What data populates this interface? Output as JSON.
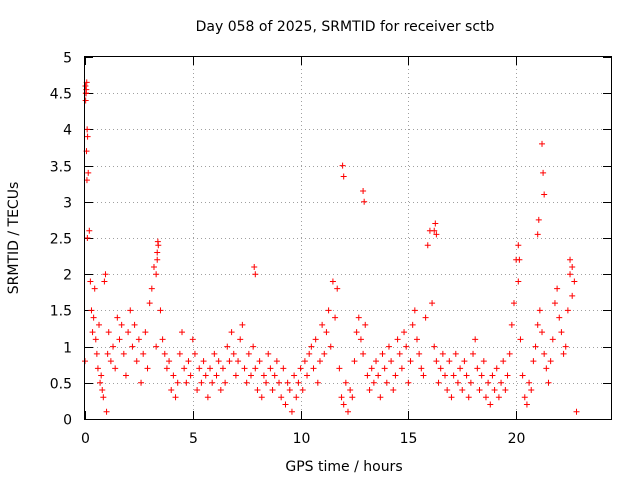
{
  "chart_data": {
    "type": "scatter",
    "title": "Day 058 of 2025, SRMTID for receiver sctb",
    "xlabel": "GPS time / hours",
    "ylabel": "SRMTID / TECUs",
    "xlim": [
      0,
      24.4
    ],
    "ylim": [
      0,
      5
    ],
    "x_ticks": [
      0,
      5,
      10,
      15,
      20
    ],
    "x_tick_labels": [
      "0",
      "5",
      "10",
      "15",
      "20"
    ],
    "y_ticks": [
      0,
      0.5,
      1,
      1.5,
      2,
      2.5,
      3,
      3.5,
      4,
      4.5,
      5
    ],
    "y_tick_labels": [
      "0",
      "0.5",
      "1",
      "1.5",
      "2",
      "2.5",
      "3",
      "3.5",
      "4",
      "4.5",
      "5"
    ],
    "grid": true,
    "marker": "+",
    "marker_color": "#ff0000",
    "series": [
      {
        "name": "sctb",
        "x": [
          0.0,
          0.02,
          0.05,
          0.08,
          0.1,
          0.12,
          0.15,
          0.2,
          0.25,
          0.3,
          0.35,
          0.4,
          0.45,
          0.5,
          0.55,
          0.6,
          0.65,
          0.7,
          0.75,
          0.8,
          0.85,
          0.9,
          0.95,
          1.0,
          1.05,
          1.1,
          1.2,
          1.3,
          1.4,
          1.5,
          1.6,
          1.7,
          1.8,
          1.9,
          2.0,
          2.1,
          2.2,
          2.3,
          2.4,
          2.5,
          2.6,
          2.7,
          2.8,
          2.9,
          3.0,
          3.1,
          3.2,
          3.3,
          3.35,
          3.4,
          3.5,
          3.6,
          3.7,
          3.8,
          3.9,
          4.0,
          4.1,
          4.2,
          4.3,
          4.4,
          4.5,
          4.6,
          4.7,
          4.8,
          4.9,
          5.0,
          5.1,
          5.2,
          5.3,
          5.4,
          5.5,
          5.6,
          5.7,
          5.8,
          5.9,
          6.0,
          6.1,
          6.2,
          6.3,
          6.4,
          6.5,
          6.6,
          6.7,
          6.8,
          6.9,
          7.0,
          7.1,
          7.2,
          7.3,
          7.4,
          7.5,
          7.6,
          7.7,
          7.8,
          7.9,
          8.0,
          8.1,
          8.2,
          8.3,
          8.4,
          8.5,
          8.6,
          8.7,
          8.8,
          8.9,
          9.0,
          9.1,
          9.2,
          9.3,
          9.4,
          9.5,
          9.6,
          9.7,
          9.8,
          9.9,
          10.0,
          10.1,
          10.2,
          10.3,
          10.4,
          10.5,
          10.6,
          10.7,
          10.8,
          10.9,
          11.0,
          11.1,
          11.2,
          11.3,
          11.4,
          11.5,
          11.6,
          11.7,
          11.8,
          11.9,
          12.0,
          12.1,
          12.2,
          12.3,
          12.4,
          12.5,
          12.6,
          12.7,
          12.8,
          12.9,
          13.0,
          13.1,
          13.2,
          13.3,
          13.4,
          13.5,
          13.6,
          13.7,
          13.8,
          13.9,
          14.0,
          14.1,
          14.2,
          14.3,
          14.4,
          14.5,
          14.6,
          14.7,
          14.8,
          14.9,
          15.0,
          15.1,
          15.2,
          15.3,
          15.4,
          15.5,
          15.6,
          15.7,
          15.8,
          15.9,
          16.0,
          16.1,
          16.2,
          16.3,
          16.4,
          16.5,
          16.6,
          16.7,
          16.8,
          16.9,
          17.0,
          17.1,
          17.2,
          17.3,
          17.4,
          17.5,
          17.6,
          17.7,
          17.8,
          17.9,
          18.0,
          18.1,
          18.2,
          18.3,
          18.4,
          18.5,
          18.6,
          18.7,
          18.8,
          18.9,
          19.0,
          19.1,
          19.2,
          19.3,
          19.4,
          19.5,
          19.6,
          19.7,
          19.8,
          19.9,
          20.0,
          20.1,
          20.2,
          20.3,
          20.4,
          20.5,
          20.6,
          20.7,
          20.8,
          20.9,
          21.0,
          21.1,
          21.2,
          21.3,
          21.4,
          21.5,
          21.6,
          21.7,
          21.8,
          21.9,
          22.0,
          22.1,
          22.2,
          22.3,
          22.4,
          22.5,
          22.6,
          22.7,
          22.8,
          0.03,
          0.04,
          0.06,
          0.07,
          0.09,
          0.11,
          3.35,
          3.38,
          3.3,
          7.85,
          7.9,
          11.95,
          12.0,
          12.9,
          12.95,
          16.2,
          16.25,
          16.3,
          20.1,
          20.15,
          21.0,
          21.05,
          21.2,
          21.25,
          21.3,
          22.5,
          22.6
        ],
        "y": [
          0.8,
          4.6,
          4.5,
          4.65,
          4.0,
          3.9,
          3.4,
          2.6,
          1.9,
          1.5,
          1.2,
          1.4,
          1.8,
          1.1,
          0.9,
          0.7,
          1.3,
          0.5,
          0.6,
          0.4,
          0.3,
          1.9,
          2.0,
          0.1,
          0.9,
          1.2,
          0.8,
          1.0,
          0.7,
          1.4,
          1.1,
          1.3,
          0.9,
          0.6,
          1.2,
          1.5,
          1.0,
          1.3,
          0.8,
          1.1,
          0.5,
          0.9,
          1.2,
          0.7,
          1.6,
          1.8,
          2.1,
          1.0,
          2.2,
          2.4,
          1.5,
          1.1,
          0.9,
          0.7,
          0.8,
          0.4,
          0.6,
          0.3,
          0.5,
          0.9,
          1.2,
          0.7,
          0.5,
          0.8,
          0.6,
          1.1,
          0.9,
          0.4,
          0.7,
          0.5,
          0.8,
          0.6,
          0.3,
          0.7,
          0.5,
          0.9,
          0.6,
          0.8,
          0.4,
          0.7,
          0.5,
          1.0,
          0.8,
          1.2,
          0.9,
          0.6,
          0.8,
          1.1,
          1.3,
          0.7,
          0.5,
          0.9,
          0.6,
          1.0,
          0.7,
          0.4,
          0.8,
          0.3,
          0.6,
          0.5,
          0.9,
          0.7,
          0.4,
          0.6,
          0.8,
          0.5,
          0.3,
          0.7,
          0.2,
          0.5,
          0.4,
          0.1,
          0.6,
          0.3,
          0.5,
          0.7,
          0.4,
          0.8,
          0.6,
          0.9,
          1.0,
          0.7,
          1.1,
          0.5,
          0.8,
          1.3,
          0.9,
          1.2,
          1.5,
          1.0,
          1.9,
          1.4,
          1.8,
          0.7,
          0.3,
          0.2,
          0.5,
          0.1,
          0.4,
          0.3,
          0.8,
          1.2,
          1.4,
          1.1,
          0.9,
          1.3,
          0.6,
          0.4,
          0.7,
          0.5,
          0.8,
          0.6,
          0.3,
          0.9,
          0.7,
          0.5,
          1.0,
          0.8,
          0.4,
          0.6,
          1.1,
          0.9,
          0.7,
          1.2,
          1.0,
          0.5,
          0.8,
          1.3,
          1.5,
          1.1,
          0.9,
          0.7,
          0.6,
          1.4,
          2.4,
          2.6,
          1.6,
          1.0,
          0.8,
          0.5,
          0.7,
          0.9,
          0.6,
          0.4,
          0.8,
          0.3,
          0.6,
          0.9,
          0.5,
          0.7,
          0.4,
          0.8,
          0.6,
          0.3,
          0.5,
          0.9,
          1.1,
          0.7,
          0.4,
          0.6,
          0.8,
          0.3,
          0.5,
          0.2,
          0.6,
          0.4,
          0.7,
          0.3,
          0.5,
          0.8,
          0.4,
          0.6,
          0.9,
          1.3,
          1.6,
          2.2,
          1.9,
          1.1,
          0.6,
          0.3,
          0.2,
          0.5,
          0.4,
          0.8,
          1.0,
          1.3,
          1.5,
          1.2,
          0.9,
          0.7,
          0.5,
          0.8,
          1.1,
          1.6,
          1.8,
          1.4,
          1.2,
          0.9,
          1.0,
          1.5,
          2.0,
          1.7,
          1.9,
          0.1,
          4.4,
          4.5,
          4.55,
          3.7,
          3.3,
          2.5,
          2.3,
          2.45,
          2.0,
          2.1,
          2.0,
          3.5,
          3.35,
          3.15,
          3.0,
          2.6,
          2.7,
          2.55,
          2.4,
          2.2,
          2.55,
          2.75,
          3.8,
          3.4,
          3.1,
          2.2,
          2.1
        ]
      }
    ]
  }
}
